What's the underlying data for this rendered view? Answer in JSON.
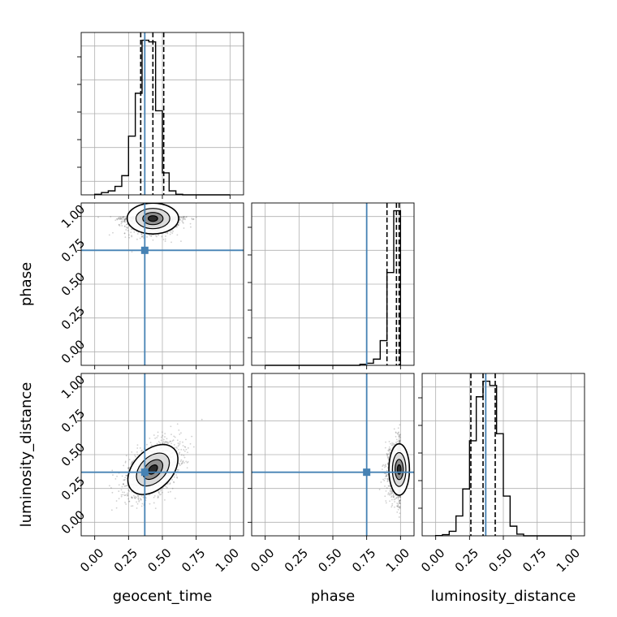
{
  "chart_data": {
    "type": "corner",
    "parameters": [
      "geocent_time",
      "phase",
      "luminosity_distance"
    ],
    "axis_range": [
      -0.1,
      1.1
    ],
    "tick_labels": [
      "0.00",
      "0.25",
      "0.50",
      "0.75",
      "1.00"
    ],
    "grid": true,
    "colors": {
      "truth": "#4682b4",
      "hist": "#000000",
      "quantile": "#000000",
      "samples": "#555555",
      "grid": "#b0b0b0"
    },
    "truths": {
      "geocent_time": 0.37,
      "phase": 0.75,
      "luminosity_distance": 0.37
    },
    "histograms": [
      {
        "parameter": "geocent_time",
        "bin_edges": [
          0.0,
          0.05,
          0.1,
          0.15,
          0.2,
          0.25,
          0.3,
          0.35,
          0.4,
          0.45,
          0.5,
          0.55,
          0.6,
          0.65,
          0.7,
          0.75,
          0.8,
          0.85,
          0.9,
          0.95,
          1.0
        ],
        "counts": [
          2,
          8,
          14,
          30,
          68,
          208,
          360,
          548,
          542,
          298,
          78,
          14,
          2,
          0,
          0,
          0,
          0,
          0,
          0,
          0
        ],
        "quantiles": [
          0.34,
          0.43,
          0.51
        ]
      },
      {
        "parameter": "phase",
        "bin_edges": [
          0.0,
          0.05,
          0.1,
          0.15,
          0.2,
          0.25,
          0.3,
          0.35,
          0.4,
          0.45,
          0.5,
          0.55,
          0.6,
          0.65,
          0.7,
          0.75,
          0.8,
          0.85,
          0.9,
          0.95,
          1.0
        ],
        "counts": [
          0,
          0,
          0,
          0,
          0,
          0,
          0,
          0,
          0,
          0,
          0,
          0,
          0,
          0,
          1,
          2,
          6,
          24,
          90,
          150
        ],
        "quantiles": [
          0.9,
          0.97,
          0.99
        ]
      },
      {
        "parameter": "luminosity_distance",
        "bin_edges": [
          0.0,
          0.05,
          0.1,
          0.15,
          0.2,
          0.25,
          0.3,
          0.35,
          0.4,
          0.45,
          0.5,
          0.55,
          0.6,
          0.65,
          0.7,
          0.75,
          0.8,
          0.85,
          0.9,
          0.95,
          1.0
        ],
        "counts": [
          1,
          4,
          16,
          70,
          165,
          335,
          490,
          545,
          530,
          360,
          140,
          34,
          6,
          0,
          0,
          0,
          0,
          0,
          0,
          0
        ],
        "quantiles": [
          0.26,
          0.35,
          0.44
        ]
      }
    ],
    "density_panels": [
      {
        "x": "geocent_time",
        "y": "phase",
        "center": [
          0.43,
          0.99
        ],
        "spread": [
          0.1,
          0.06
        ],
        "correlation": 0.0,
        "contour_levels": 3
      },
      {
        "x": "geocent_time",
        "y": "luminosity_distance",
        "center": [
          0.43,
          0.39
        ],
        "spread": [
          0.1,
          0.1
        ],
        "correlation": 0.5,
        "contour_levels": 3
      },
      {
        "x": "phase",
        "y": "luminosity_distance",
        "center": [
          0.99,
          0.39
        ],
        "spread": [
          0.04,
          0.1
        ],
        "correlation": 0.0,
        "contour_levels": 3
      }
    ]
  }
}
